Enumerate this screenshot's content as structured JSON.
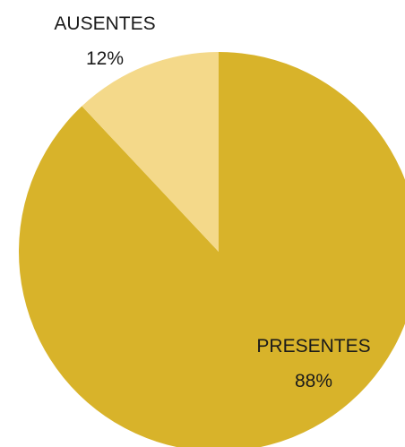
{
  "chart_data": {
    "type": "pie",
    "categories": [
      "PRESENTES",
      "AUSENTES"
    ],
    "values": [
      88,
      12
    ],
    "labels": {
      "PRESENTES": {
        "name": "PRESENTES",
        "value_text": "88%"
      },
      "AUSENTES": {
        "name": "AUSENTES",
        "value_text": "12%"
      }
    },
    "colors": [
      "#d8b32a",
      "#f4d98a"
    ],
    "start_angle_deg": 0,
    "direction": "clockwise",
    "legend": "none"
  }
}
